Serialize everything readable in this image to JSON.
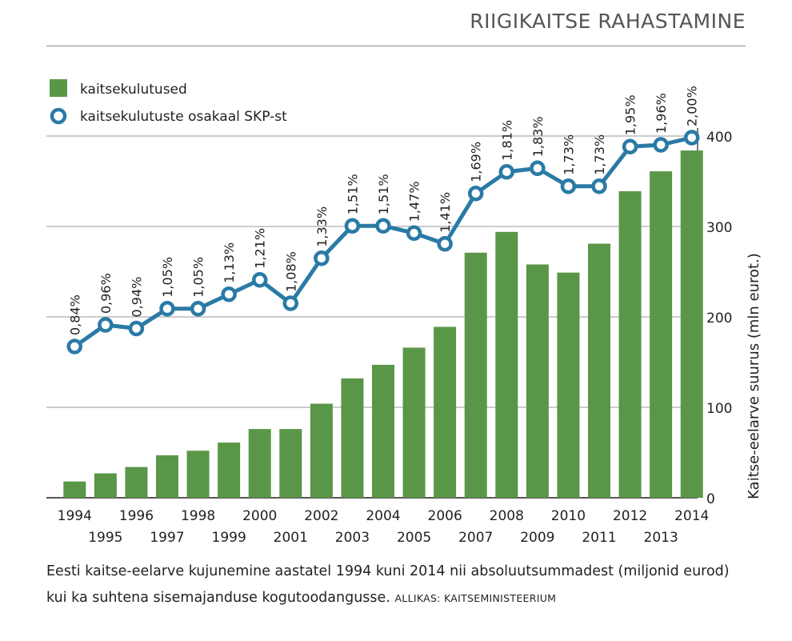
{
  "header": {
    "title": "RIIGIKAITSE RAHASTAMINE"
  },
  "caption": {
    "text": "Eesti kaitse-eelarve kujunemine aastatel 1994 kuni 2014 nii absoluutsummadest (miljonid eurod) kui ka suhtena sisemajanduse kogutoodangusse.",
    "source": "ALLIKAS: KAITSEMINISTEERIUM"
  },
  "colors": {
    "bar": "#5a9647",
    "line": "#2a7aa6",
    "grid": "#9a9a9a",
    "text": "#231f20"
  },
  "chart_data": {
    "type": "bar",
    "categories": [
      "1994",
      "1995",
      "1996",
      "1997",
      "1998",
      "1999",
      "2000",
      "2001",
      "2002",
      "2003",
      "2004",
      "2005",
      "2006",
      "2007",
      "2008",
      "2009",
      "2010",
      "2011",
      "2012",
      "2013",
      "2014"
    ],
    "series": [
      {
        "name": "kaitsekulutused",
        "type": "bar",
        "axis": "right",
        "values": [
          18,
          27,
          34,
          47,
          52,
          61,
          76,
          76,
          104,
          132,
          147,
          166,
          189,
          271,
          294,
          258,
          249,
          281,
          339,
          361,
          384
        ]
      },
      {
        "name": "kaitsekulutuste osakaal SKP-st",
        "type": "line",
        "values": [
          0.84,
          0.96,
          0.94,
          1.05,
          1.05,
          1.13,
          1.21,
          1.08,
          1.33,
          1.51,
          1.51,
          1.47,
          1.41,
          1.69,
          1.81,
          1.83,
          1.73,
          1.73,
          1.95,
          1.96,
          2.0
        ],
        "labels": [
          "0,84%",
          "0,96%",
          "0,94%",
          "1,05%",
          "1,05%",
          "1,13%",
          "1,21%",
          "1,08%",
          "1,33%",
          "1,51%",
          "1,51%",
          "1,47%",
          "1,41%",
          "1,69%",
          "1,81%",
          "1,83%",
          "1,73%",
          "1,73%",
          "1,95%",
          "1,96%",
          "2,00%"
        ]
      }
    ],
    "ylabel_right": "Kaitse-eelarve suurus (mln eurot.)",
    "yticks": [
      "0",
      "100",
      "200",
      "300",
      "400"
    ],
    "ylim": [
      0,
      400
    ],
    "y2lim": [
      0,
      2.0
    ],
    "grid": true,
    "legend_position": "top-left"
  }
}
